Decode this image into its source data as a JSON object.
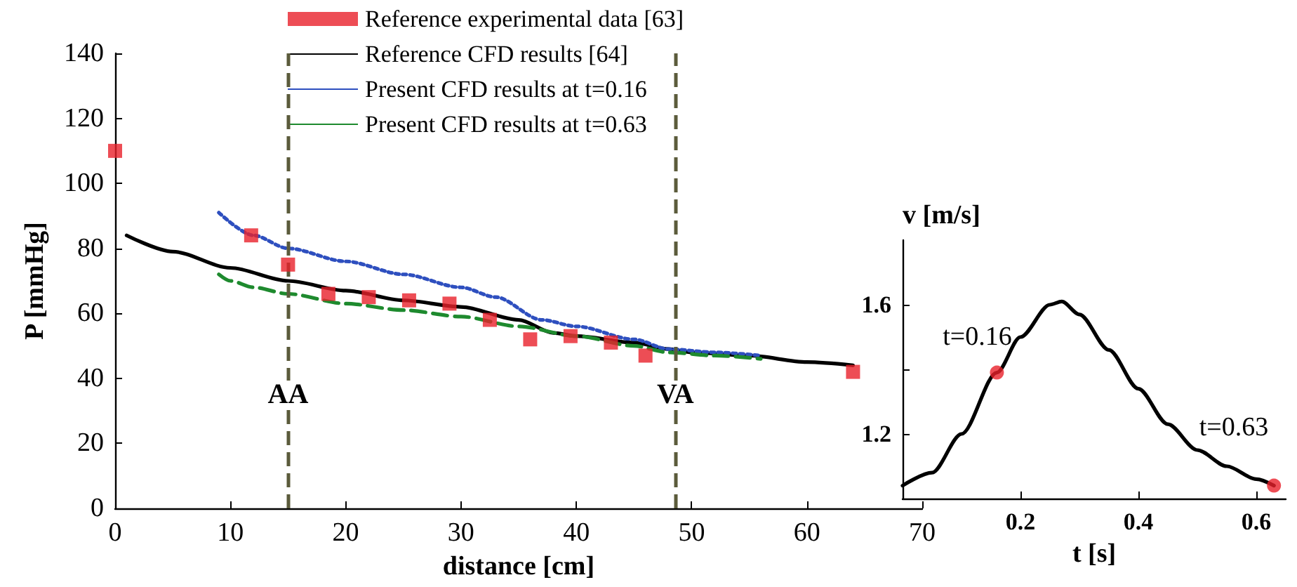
{
  "chart_data": [
    {
      "type": "line",
      "xlabel": "distance [cm]",
      "ylabel": "P [mmHg]",
      "xlim": [
        0,
        70
      ],
      "xticks": [
        0,
        10,
        20,
        30,
        40,
        50,
        60,
        70
      ],
      "ylim": [
        0,
        140
      ],
      "yticks": [
        0,
        20,
        40,
        60,
        80,
        100,
        120,
        140
      ],
      "grid": false,
      "legend": "top",
      "series": [
        {
          "name": "Reference experimental data [63]",
          "type": "scatter",
          "marker": "square",
          "color": "#e8202a",
          "x": [
            0,
            11.8,
            15,
            18.5,
            22,
            25.5,
            29,
            32.5,
            36,
            39.5,
            43,
            46,
            64
          ],
          "values": [
            110,
            84,
            75,
            66,
            65,
            64,
            63,
            58,
            52,
            53,
            51,
            47,
            42
          ]
        },
        {
          "name": "Reference CFD results [64]",
          "type": "line",
          "line_style": "solid",
          "color": "#000000",
          "x": [
            1,
            5,
            10,
            15,
            20,
            25,
            30,
            35,
            38,
            40,
            45,
            48,
            50,
            55,
            60,
            64
          ],
          "values": [
            84,
            79,
            74,
            70,
            67,
            64,
            62,
            58,
            54,
            53,
            51,
            49,
            48,
            47,
            45,
            44
          ]
        },
        {
          "name": "Present CFD results at t=0.16",
          "type": "line",
          "line_style": "dotted",
          "color": "#2e4fbf",
          "x": [
            9,
            12,
            15,
            20,
            25,
            30,
            33,
            37,
            40,
            45,
            48,
            52,
            56
          ],
          "values": [
            91,
            84,
            80,
            76,
            72,
            68,
            65,
            58,
            56,
            52,
            49,
            48,
            47
          ]
        },
        {
          "name": "Present CFD results at t=0.63",
          "type": "line",
          "line_style": "dashed",
          "color": "#1e8a2e",
          "x": [
            9,
            10,
            12,
            15,
            20,
            25,
            30,
            35,
            40,
            45,
            48,
            52,
            56
          ],
          "values": [
            72,
            70,
            68,
            66,
            63,
            61,
            59,
            56,
            53,
            50,
            48,
            47,
            46
          ]
        }
      ],
      "ref_lines": [
        {
          "axis": "x",
          "value": 15,
          "label": "AA",
          "color": "#5b5b3b",
          "line_style": "dashed"
        },
        {
          "axis": "x",
          "value": 48.6,
          "label": "VA",
          "color": "#5b5b3b",
          "line_style": "dashed"
        }
      ]
    },
    {
      "type": "line",
      "xlabel": "t [s]",
      "ylabel": "v [m/s]",
      "xlim": [
        0,
        0.65
      ],
      "xticks": [
        0.2,
        0.4,
        0.6
      ],
      "ylim": [
        1.0,
        1.8
      ],
      "yticks": [
        1.2,
        {
          "value": 1.4,
          "label": null
        },
        1.6
      ],
      "grid": false,
      "series": [
        {
          "type": "line",
          "line_style": "solid",
          "color": "#000000",
          "x": [
            0,
            0.05,
            0.1,
            0.16,
            0.2,
            0.25,
            0.27,
            0.3,
            0.35,
            0.4,
            0.45,
            0.5,
            0.55,
            0.6,
            0.63
          ],
          "values": [
            1.04,
            1.08,
            1.2,
            1.39,
            1.5,
            1.6,
            1.61,
            1.57,
            1.46,
            1.34,
            1.23,
            1.15,
            1.1,
            1.06,
            1.04
          ]
        },
        {
          "type": "scatter",
          "marker": "circle",
          "color": "#e8202a",
          "x": [
            0.16,
            0.63
          ],
          "values": [
            1.39,
            1.04
          ]
        }
      ],
      "annotations": [
        {
          "text": "t=0.16",
          "x": 0.16,
          "y": 1.39
        },
        {
          "text": "t=0.63",
          "x": 0.63,
          "y": 1.04
        }
      ]
    }
  ]
}
